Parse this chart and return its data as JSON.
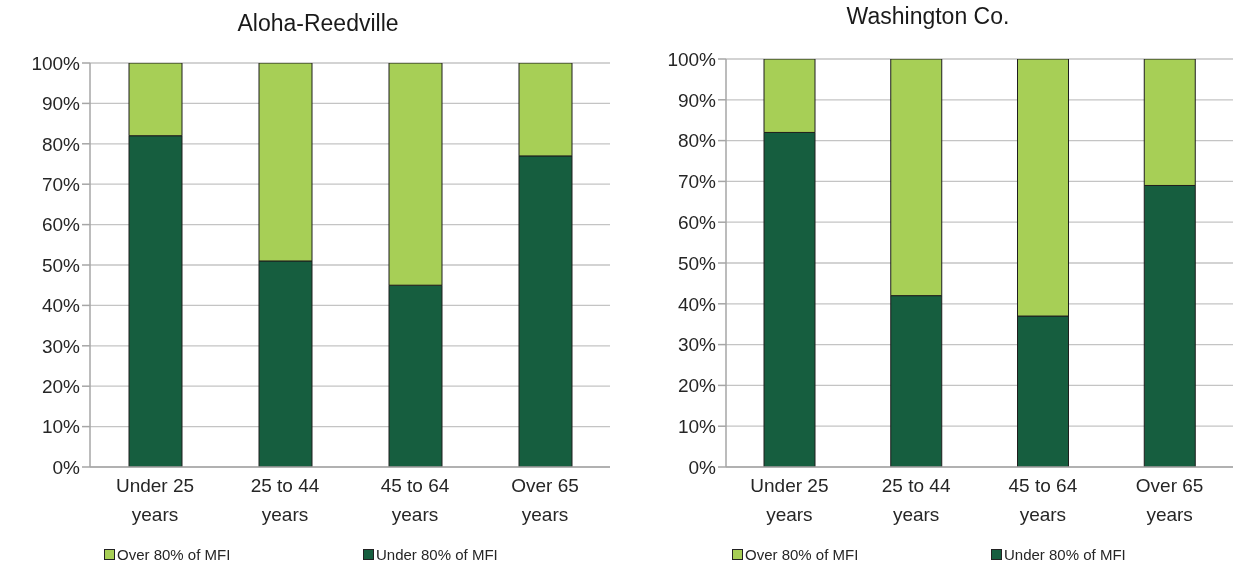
{
  "chart_data": [
    {
      "type": "bar",
      "stacked": true,
      "title": "Aloha-Reedville",
      "categories": [
        "Under 25 years",
        "25 to 44 years",
        "45 to 64 years",
        "Over 65 years"
      ],
      "series": [
        {
          "name": "Under 80% of MFI",
          "color": "#165e3f",
          "values": [
            82,
            51,
            45,
            77
          ]
        },
        {
          "name": "Over 80% of MFI",
          "color": "#a7cf56",
          "values": [
            18,
            49,
            55,
            23
          ]
        }
      ],
      "ylim": [
        0,
        100
      ],
      "yticks": [
        {
          "value": 0,
          "label": "0%"
        },
        {
          "value": 10,
          "label": "10%"
        },
        {
          "value": 20,
          "label": "20%"
        },
        {
          "value": 30,
          "label": "30%"
        },
        {
          "value": 40,
          "label": "40%"
        },
        {
          "value": 50,
          "label": "50%"
        },
        {
          "value": 60,
          "label": "60%"
        },
        {
          "value": 70,
          "label": "70%"
        },
        {
          "value": 80,
          "label": "80%"
        },
        {
          "value": 90,
          "label": "90%"
        },
        {
          "value": 100,
          "label": "100%"
        }
      ],
      "grid": "y",
      "legend": "bottom"
    },
    {
      "type": "bar",
      "stacked": true,
      "title": "Washington Co.",
      "categories": [
        "Under 25 years",
        "25 to 44 years",
        "45 to 64 years",
        "Over 65 years"
      ],
      "series": [
        {
          "name": "Under 80% of MFI",
          "color": "#165e3f",
          "values": [
            82,
            42,
            37,
            69
          ]
        },
        {
          "name": "Over 80% of MFI",
          "color": "#a7cf56",
          "values": [
            18,
            58,
            63,
            31
          ]
        }
      ],
      "ylim": [
        0,
        100
      ],
      "yticks": [
        {
          "value": 0,
          "label": "0%"
        },
        {
          "value": 10,
          "label": "10%"
        },
        {
          "value": 20,
          "label": "20%"
        },
        {
          "value": 30,
          "label": "30%"
        },
        {
          "value": 40,
          "label": "40%"
        },
        {
          "value": 50,
          "label": "50%"
        },
        {
          "value": 60,
          "label": "60%"
        },
        {
          "value": 70,
          "label": "70%"
        },
        {
          "value": 80,
          "label": "80%"
        },
        {
          "value": 90,
          "label": "90%"
        },
        {
          "value": 100,
          "label": "100%"
        }
      ],
      "grid": "y",
      "legend": "bottom"
    }
  ]
}
